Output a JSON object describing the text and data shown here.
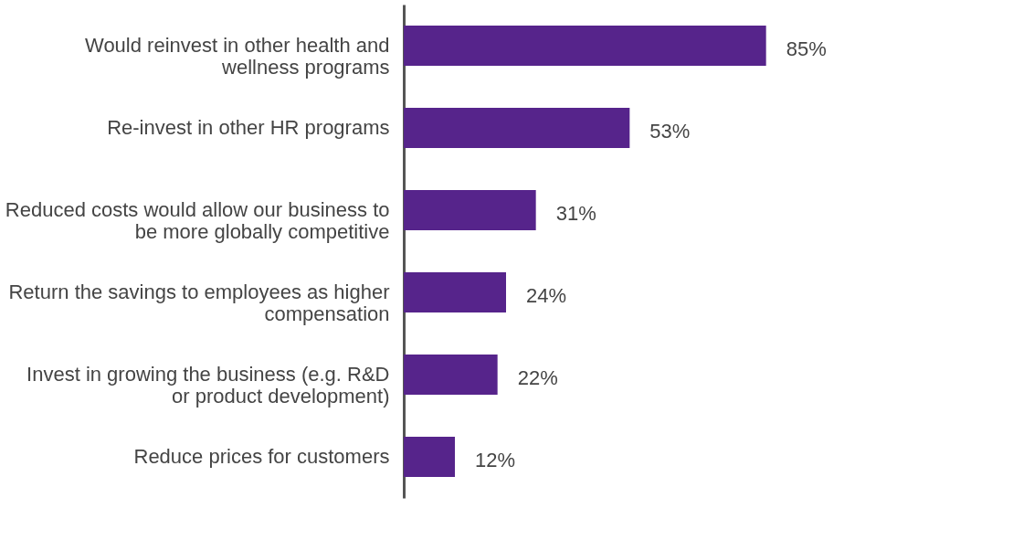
{
  "chart_data": {
    "type": "bar",
    "orientation": "horizontal",
    "categories": [
      "Would reinvest in other health and wellness programs",
      "Re-invest in other HR programs",
      "Reduced costs would allow our business to be more globally competitive",
      "Return the savings to employees as higher compensation",
      "Invest in growing the business (e.g. R&D or product development)",
      "Reduce prices for customers"
    ],
    "values": [
      85,
      53,
      31,
      24,
      22,
      12
    ],
    "value_labels": [
      "85%",
      "53%",
      "31%",
      "24%",
      "22%",
      "12%"
    ],
    "color": "#56248b"
  }
}
